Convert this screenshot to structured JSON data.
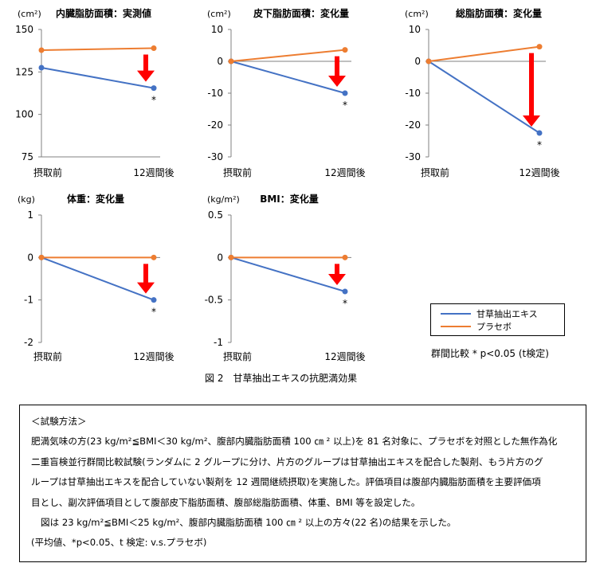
{
  "chart_data": [
    {
      "type": "line",
      "title": "内臓脂肪面積：実測値",
      "ylabel": "(cm²)",
      "categories": [
        "摂取前",
        "12週間後"
      ],
      "ylim": [
        75,
        150
      ],
      "yticks": [
        75,
        100,
        125,
        150
      ],
      "series": [
        {
          "name": "甘草抽出エキス",
          "values": [
            127.5,
            115.5
          ]
        },
        {
          "name": "プラセボ",
          "values": [
            137.8,
            139
          ]
        }
      ],
      "annotations": [
        "*"
      ]
    },
    {
      "type": "line",
      "title": "皮下脂肪面積：変化量",
      "ylabel": "(cm²)",
      "categories": [
        "摂取前",
        "12週間後"
      ],
      "ylim": [
        -30,
        10
      ],
      "yticks": [
        -30,
        -20,
        -10,
        0,
        10
      ],
      "series": [
        {
          "name": "甘草抽出エキス",
          "values": [
            0,
            -10
          ]
        },
        {
          "name": "プラセボ",
          "values": [
            0,
            3.6
          ]
        }
      ],
      "annotations": [
        "*"
      ]
    },
    {
      "type": "line",
      "title": "総脂肪面積：変化量",
      "ylabel": "(cm²)",
      "categories": [
        "摂取前",
        "12週間後"
      ],
      "ylim": [
        -30,
        10
      ],
      "yticks": [
        -30,
        -20,
        -10,
        0,
        10
      ],
      "series": [
        {
          "name": "甘草抽出エキス",
          "values": [
            0,
            -22.5
          ]
        },
        {
          "name": "プラセボ",
          "values": [
            0,
            4.6
          ]
        }
      ],
      "annotations": [
        "*"
      ]
    },
    {
      "type": "line",
      "title": "体重：変化量",
      "ylabel": "(kg)",
      "categories": [
        "摂取前",
        "12週間後"
      ],
      "ylim": [
        -2,
        1
      ],
      "yticks": [
        -2,
        -1,
        0,
        1
      ],
      "series": [
        {
          "name": "甘草抽出エキス",
          "values": [
            0,
            -1.0
          ]
        },
        {
          "name": "プラセボ",
          "values": [
            0,
            0
          ]
        }
      ],
      "annotations": [
        "*"
      ]
    },
    {
      "type": "line",
      "title": "BMI：変化量",
      "ylabel": "(kg/m²)",
      "categories": [
        "摂取前",
        "12週間後"
      ],
      "ylim": [
        -1,
        0.5
      ],
      "yticks": [
        -1,
        -0.5,
        0,
        0.5
      ],
      "series": [
        {
          "name": "甘草抽出エキス",
          "values": [
            0,
            -0.4
          ]
        },
        {
          "name": "プラセボ",
          "values": [
            0,
            0
          ]
        }
      ],
      "annotations": [
        "*"
      ]
    }
  ],
  "legend": {
    "items": [
      {
        "name": "甘草抽出エキス",
        "color": "#4472c4"
      },
      {
        "name": "プラセボ",
        "color": "#ed7d31"
      }
    ]
  },
  "colors": {
    "arrow": "#ff0000",
    "axis": "#808080"
  },
  "note": "群間比較 * p<0.05 (t検定)",
  "figure_caption": "図 2　甘草抽出エキスの抗肥満効果",
  "method": {
    "heading": "＜試験方法＞",
    "paragraphs": [
      "肥満気味の方(23 kg/m²≦BMI＜30 kg/m²、腹部内臓脂肪面積 100 ㎝ ² 以上)を 81 名対象に、プラセボを対照とした無作為化",
      "二重盲検並行群間比較試験(ランダムに 2 グループに分け、片方のグループは甘草抽出エキスを配合した製剤、もう片方のグ",
      "ループは甘草抽出エキスを配合していない製剤を 12 週間継続摂取)を実施した。評価項目は腹部内臓脂肪面積を主要評価項",
      "目とし、副次評価項目として腹部皮下脂肪面積、腹部総脂肪面積、体重、BMI 等を設定した。"
    ],
    "result": "図は 23 kg/m²≦BMI＜25 kg/m²、腹部内臓脂肪面積 100 ㎝ ² 以上の方々(22 名)の結果を示した。",
    "footnote": "(平均値、*p<0.05、t 検定:  v.s.プラセボ)"
  }
}
